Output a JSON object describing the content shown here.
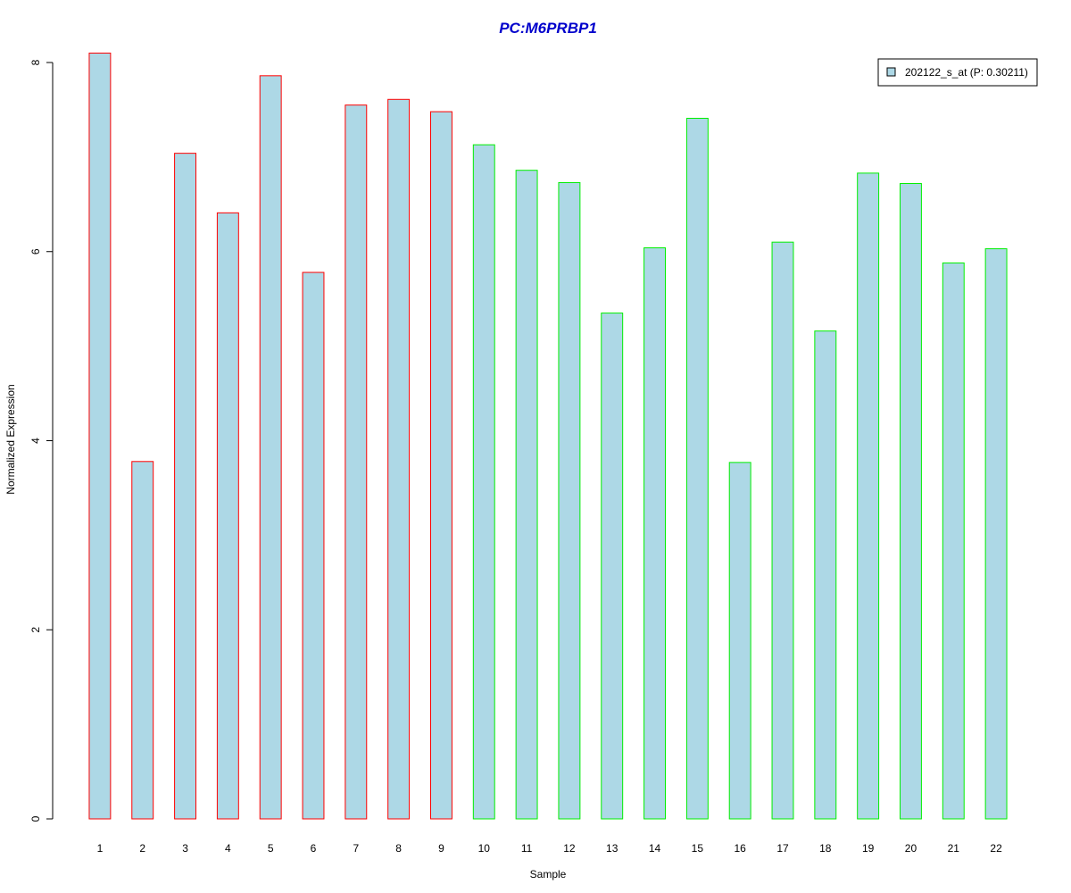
{
  "chart_data": {
    "type": "bar",
    "title": "PC:M6PRBP1",
    "title_color": "#0000cc",
    "xlabel": "Sample",
    "ylabel": "Normalized Expression",
    "categories": [
      "1",
      "2",
      "3",
      "4",
      "5",
      "6",
      "7",
      "8",
      "9",
      "10",
      "11",
      "12",
      "13",
      "14",
      "15",
      "16",
      "17",
      "18",
      "19",
      "20",
      "21",
      "22"
    ],
    "series": [
      {
        "name": "202122_s_at (P: 0.30211)",
        "values": [
          8.1,
          3.78,
          7.04,
          6.41,
          7.86,
          5.78,
          7.55,
          7.61,
          7.48,
          7.13,
          6.86,
          6.73,
          5.35,
          6.04,
          7.41,
          3.77,
          6.1,
          5.16,
          6.83,
          6.72,
          5.88,
          6.03
        ]
      }
    ],
    "groups": [
      {
        "samples": [
          "1",
          "2",
          "3",
          "4",
          "5",
          "6",
          "7",
          "8",
          "9"
        ],
        "border_color": "#ff0000"
      },
      {
        "samples": [
          "10",
          "11",
          "12",
          "13",
          "14",
          "15",
          "16",
          "17",
          "18",
          "19",
          "20",
          "21",
          "22"
        ],
        "border_color": "#00ee00"
      }
    ],
    "bar_fill": "#add8e6",
    "yticks": [
      "0",
      "2",
      "4",
      "6",
      "8"
    ],
    "ylim": [
      0,
      8.1
    ],
    "grid": false,
    "legend": {
      "position": "top-right",
      "label": "202122_s_at (P: 0.30211)",
      "swatch_color": "#add8e6"
    }
  }
}
